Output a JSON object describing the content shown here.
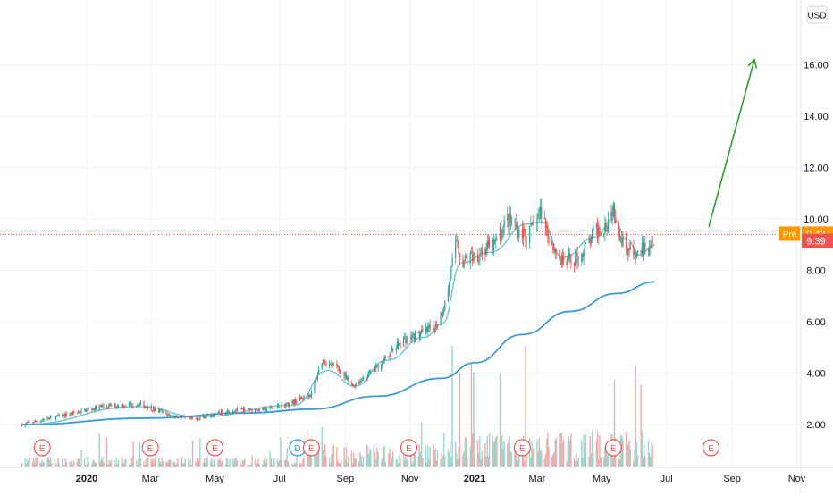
{
  "chart_data": {
    "type": "candlestick",
    "currency": "USD",
    "x_ticks": [
      {
        "label": "2020",
        "date": "2020-01-01",
        "bold": true
      },
      {
        "label": "Mar",
        "date": "2020-03-01"
      },
      {
        "label": "May",
        "date": "2020-05-01"
      },
      {
        "label": "Jul",
        "date": "2020-07-01"
      },
      {
        "label": "Sep",
        "date": "2020-09-01"
      },
      {
        "label": "Nov",
        "date": "2020-11-01"
      },
      {
        "label": "2021",
        "date": "2021-01-01",
        "bold": true
      },
      {
        "label": "Mar",
        "date": "2021-03-01"
      },
      {
        "label": "May",
        "date": "2021-05-01"
      },
      {
        "label": "Jul",
        "date": "2021-07-01"
      },
      {
        "label": "Sep",
        "date": "2021-09-01"
      },
      {
        "label": "Nov",
        "date": "2021-11-01"
      }
    ],
    "y_ticks": [
      "2.00",
      "4.00",
      "6.00",
      "8.00",
      "10.00",
      "12.00",
      "14.00",
      "16.00"
    ],
    "ylim": [
      0.5,
      17.8
    ],
    "grid": true,
    "price_key_points": [
      [
        "2019-11-01",
        2.0
      ],
      [
        "2019-12-15",
        2.4
      ],
      [
        "2020-01-15",
        2.7
      ],
      [
        "2020-02-20",
        2.8
      ],
      [
        "2020-03-20",
        2.35
      ],
      [
        "2020-04-10",
        2.2
      ],
      [
        "2020-05-15",
        2.55
      ],
      [
        "2020-06-20",
        2.6
      ],
      [
        "2020-07-10",
        2.8
      ],
      [
        "2020-07-31",
        3.2
      ],
      [
        "2020-08-10",
        4.5
      ],
      [
        "2020-08-25",
        4.2
      ],
      [
        "2020-09-07",
        3.5
      ],
      [
        "2020-09-25",
        4.0
      ],
      [
        "2020-10-10",
        4.6
      ],
      [
        "2020-10-25",
        5.3
      ],
      [
        "2020-11-10",
        5.5
      ],
      [
        "2020-11-25",
        5.8
      ],
      [
        "2020-12-05",
        6.8
      ],
      [
        "2020-12-15",
        9.2
      ],
      [
        "2020-12-20",
        8.3
      ],
      [
        "2021-01-01",
        8.6
      ],
      [
        "2021-01-20",
        9.0
      ],
      [
        "2021-02-01",
        10.0
      ],
      [
        "2021-02-20",
        9.3
      ],
      [
        "2021-03-05",
        10.3
      ],
      [
        "2021-03-15",
        9.0
      ],
      [
        "2021-03-25",
        8.3
      ],
      [
        "2021-04-10",
        8.5
      ],
      [
        "2021-04-25",
        9.5
      ],
      [
        "2021-05-05",
        9.8
      ],
      [
        "2021-05-12",
        10.5
      ],
      [
        "2021-05-20",
        9.2
      ],
      [
        "2021-06-01",
        8.5
      ],
      [
        "2021-06-10",
        8.9
      ],
      [
        "2021-06-20",
        9.4
      ]
    ],
    "moving_averages": [
      {
        "name": "short",
        "color": "#5fc4d1",
        "points": [
          [
            "2019-11-01",
            2.0
          ],
          [
            "2020-02-20",
            2.7
          ],
          [
            "2020-04-15",
            2.3
          ],
          [
            "2020-07-15",
            2.75
          ],
          [
            "2020-08-15",
            4.1
          ],
          [
            "2020-09-10",
            3.5
          ],
          [
            "2020-10-10",
            4.5
          ],
          [
            "2020-11-15",
            5.4
          ],
          [
            "2020-12-01",
            5.9
          ],
          [
            "2020-12-20",
            8.3
          ],
          [
            "2021-01-15",
            8.7
          ],
          [
            "2021-02-20",
            9.8
          ],
          [
            "2021-03-05",
            9.9
          ],
          [
            "2021-03-25",
            8.5
          ],
          [
            "2021-04-25",
            9.3
          ],
          [
            "2021-05-12",
            10.0
          ],
          [
            "2021-05-25",
            9.2
          ],
          [
            "2021-06-05",
            8.6
          ],
          [
            "2021-06-20",
            9.0
          ]
        ]
      },
      {
        "name": "long",
        "color": "#3d9ad6",
        "points": [
          [
            "2019-11-01",
            2.0
          ],
          [
            "2020-03-01",
            2.25
          ],
          [
            "2020-06-01",
            2.45
          ],
          [
            "2020-08-01",
            2.6
          ],
          [
            "2020-10-01",
            3.1
          ],
          [
            "2020-12-01",
            3.8
          ],
          [
            "2021-01-01",
            4.4
          ],
          [
            "2021-02-15",
            5.5
          ],
          [
            "2021-04-01",
            6.4
          ],
          [
            "2021-05-15",
            7.1
          ],
          [
            "2021-06-20",
            7.55
          ]
        ]
      }
    ],
    "arrow": {
      "color": "#2e9e2e",
      "from": [
        "2021-08-10",
        9.7
      ],
      "to": [
        "2021-09-22",
        16.2
      ]
    },
    "current_price": {
      "value": 9.39,
      "label": "9.39",
      "color": "#f05350"
    },
    "premarket": {
      "tag": "Pre",
      "value": 9.43,
      "label": "9.43",
      "color": "#ff9800"
    },
    "events": [
      {
        "letter": "E",
        "date": "2019-11-20",
        "type": "earnings"
      },
      {
        "letter": "E",
        "date": "2020-03-01",
        "type": "earnings"
      },
      {
        "letter": "E",
        "date": "2020-05-01",
        "type": "earnings"
      },
      {
        "letter": "D",
        "date": "2020-07-18",
        "type": "dividend"
      },
      {
        "letter": "E",
        "date": "2020-07-31",
        "type": "earnings"
      },
      {
        "letter": "E",
        "date": "2020-10-31",
        "type": "earnings"
      },
      {
        "letter": "E",
        "date": "2021-02-15",
        "type": "earnings"
      },
      {
        "letter": "E",
        "date": "2021-05-12",
        "type": "earnings"
      },
      {
        "letter": "E",
        "date": "2021-08-12",
        "type": "earnings"
      }
    ],
    "colors": {
      "up": "#26a69a",
      "down": "#ef5350",
      "volume_up": "#9bd6cf",
      "volume_down": "#f5a9a7",
      "grid": "#f0f3fa",
      "axis_text": "#131722",
      "event": "#ef5350",
      "dividend": "#2196f3"
    }
  }
}
